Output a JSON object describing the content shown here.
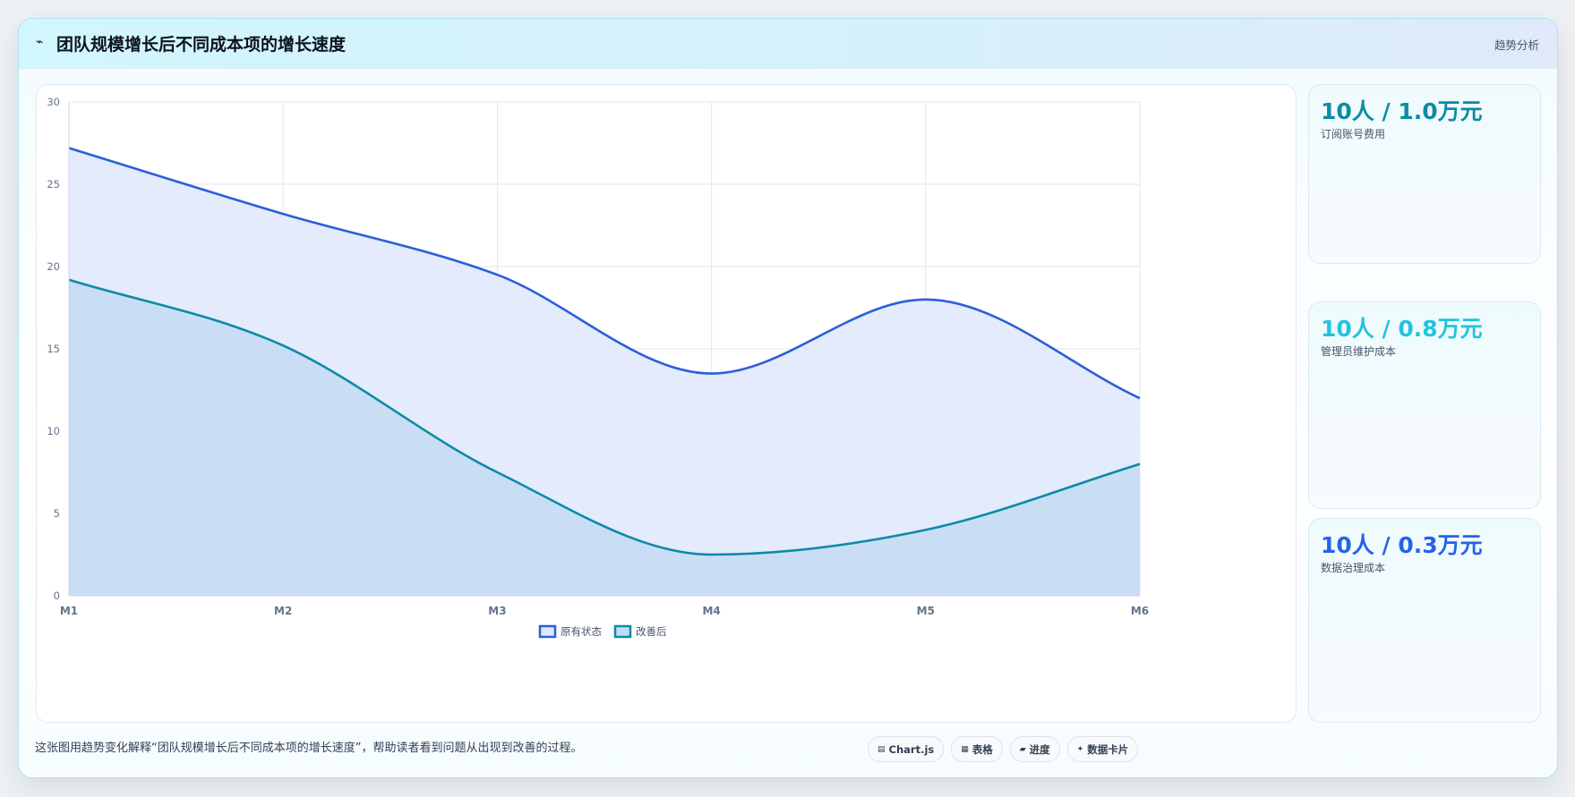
{
  "header": {
    "icon": "trend-icon",
    "title": "团队规模增长后不同成本项的增长速度",
    "tag": "趋势分析"
  },
  "kpis": [
    {
      "value": "10人 / 1.0万元",
      "label": "订阅账号费用",
      "color": "#0e8aa6"
    },
    {
      "value": "10人 / 0.8万元",
      "label": "管理员维护成本",
      "color": "#22c3de"
    },
    {
      "value": "10人 / 0.3万元",
      "label": "数据治理成本",
      "color": "#2563eb"
    }
  ],
  "caption": "这张图用趋势变化解释“团队规模增长后不同成本项的增长速度”，帮助读者看到问题从出现到改善的过程。",
  "chips": [
    {
      "icon": "chart-icon",
      "label": "Chart.js"
    },
    {
      "icon": "table-icon",
      "label": "表格"
    },
    {
      "icon": "progress-icon",
      "label": "进度"
    },
    {
      "icon": "sparkle-icon",
      "label": "数据卡片"
    }
  ],
  "chart_data": {
    "type": "area",
    "categories": [
      "M1",
      "M2",
      "M3",
      "M4",
      "M5",
      "M6"
    ],
    "ylim": [
      0,
      30
    ],
    "yticks": [
      0,
      5,
      10,
      15,
      20,
      25,
      30
    ],
    "grid": true,
    "legend_position": "bottom-center",
    "series": [
      {
        "name": "原有状态",
        "values": [
          27.2,
          23.2,
          19.5,
          13.5,
          18.0,
          12.0
        ],
        "color": "#2b5fd9",
        "fill": "#dfe8fb"
      },
      {
        "name": "改善后",
        "values": [
          19.2,
          15.2,
          7.5,
          2.5,
          4.0,
          8.0
        ],
        "color": "#0e8aa6",
        "fill": "#c4dcf2"
      }
    ]
  }
}
